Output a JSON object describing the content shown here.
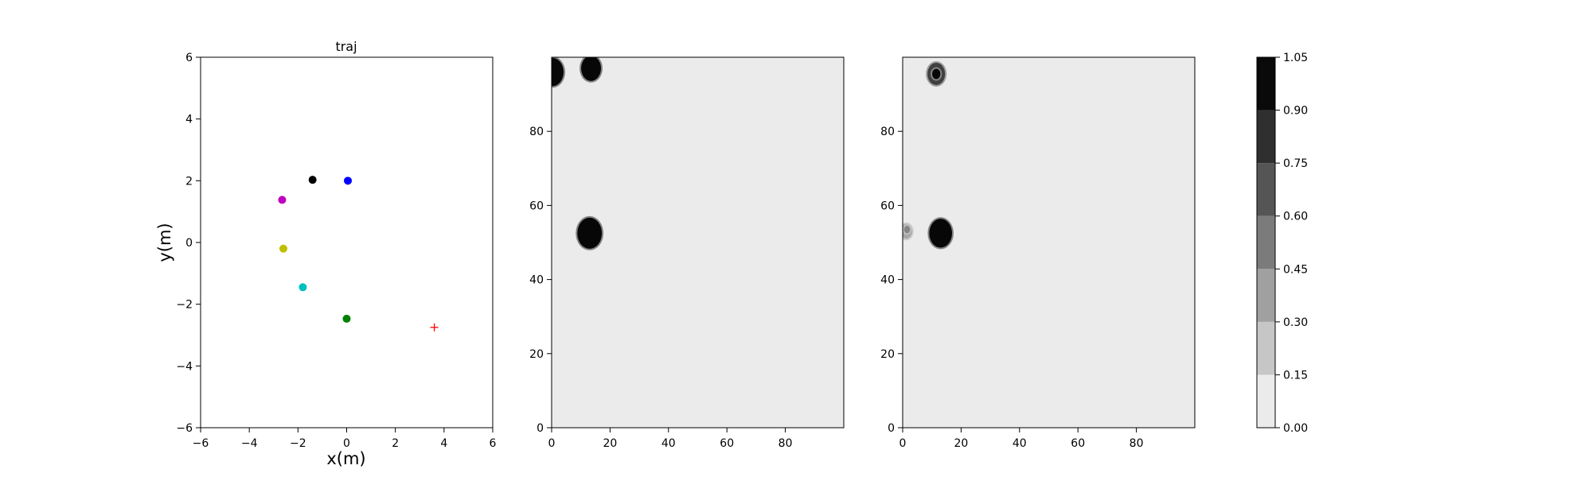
{
  "chart_data": [
    {
      "type": "scatter",
      "title": "traj",
      "xlabel": "x(m)",
      "ylabel": "y(m)",
      "xlim": [
        -6,
        6
      ],
      "ylim": [
        -6,
        6
      ],
      "xticks": [
        -6,
        -4,
        -2,
        0,
        2,
        4,
        6
      ],
      "yticks": [
        -6,
        -4,
        -2,
        0,
        2,
        4,
        6
      ],
      "grid": false,
      "points": [
        {
          "x": -1.4,
          "y": 2.03,
          "color": "#000000",
          "marker": "circle"
        },
        {
          "x": 0.05,
          "y": 2.0,
          "color": "#0000ff",
          "marker": "circle"
        },
        {
          "x": -2.65,
          "y": 1.38,
          "color": "#bf00bf",
          "marker": "circle"
        },
        {
          "x": -2.6,
          "y": -0.2,
          "color": "#bfbf00",
          "marker": "circle"
        },
        {
          "x": -1.8,
          "y": -1.45,
          "color": "#00bfbf",
          "marker": "circle"
        },
        {
          "x": 0.0,
          "y": -2.47,
          "color": "#008000",
          "marker": "circle"
        },
        {
          "x": 3.6,
          "y": -2.75,
          "color": "#ff0000",
          "marker": "plus"
        }
      ]
    },
    {
      "type": "heatmap",
      "title": "",
      "xlabel": "",
      "ylabel": "",
      "xlim": [
        0,
        100
      ],
      "ylim": [
        0,
        100
      ],
      "xticks": [
        0,
        20,
        40,
        60,
        80
      ],
      "yticks": [
        0,
        20,
        40,
        60,
        80
      ],
      "background_value": 0.05,
      "blobs": [
        {
          "x": 0.3,
          "y": 96.0,
          "r": 3.8,
          "value": 1.0
        },
        {
          "x": 13.5,
          "y": 97.0,
          "r": 3.4,
          "value": 1.0
        },
        {
          "x": 13.0,
          "y": 52.5,
          "r": 4.2,
          "value": 1.0
        }
      ]
    },
    {
      "type": "heatmap",
      "title": "",
      "xlabel": "",
      "ylabel": "",
      "xlim": [
        0,
        100
      ],
      "ylim": [
        0,
        100
      ],
      "xticks": [
        0,
        20,
        40,
        60,
        80
      ],
      "yticks": [
        0,
        20,
        40,
        60,
        80
      ],
      "background_value": 0.05,
      "blobs": [
        {
          "x": 11.5,
          "y": 95.5,
          "r": 3.0,
          "value": 0.75
        },
        {
          "x": 11.5,
          "y": 95.5,
          "r": 1.4,
          "value": 1.0
        },
        {
          "x": 13.0,
          "y": 52.5,
          "r": 3.9,
          "value": 1.0
        },
        {
          "x": 1.2,
          "y": 53.0,
          "r": 2.0,
          "value": 0.3
        },
        {
          "x": 1.5,
          "y": 53.5,
          "r": 1.0,
          "value": 0.45
        }
      ]
    },
    {
      "type": "colorbar",
      "levels": [
        0.0,
        0.15,
        0.3,
        0.45,
        0.6,
        0.75,
        0.9,
        1.05
      ],
      "tick_labels": [
        "0.00",
        "0.15",
        "0.30",
        "0.45",
        "0.60",
        "0.75",
        "0.90",
        "1.05"
      ],
      "colors": [
        "#ebebeb",
        "#c6c6c6",
        "#a0a0a0",
        "#7b7b7b",
        "#555555",
        "#2f2f2f",
        "#0a0a0a"
      ]
    }
  ]
}
